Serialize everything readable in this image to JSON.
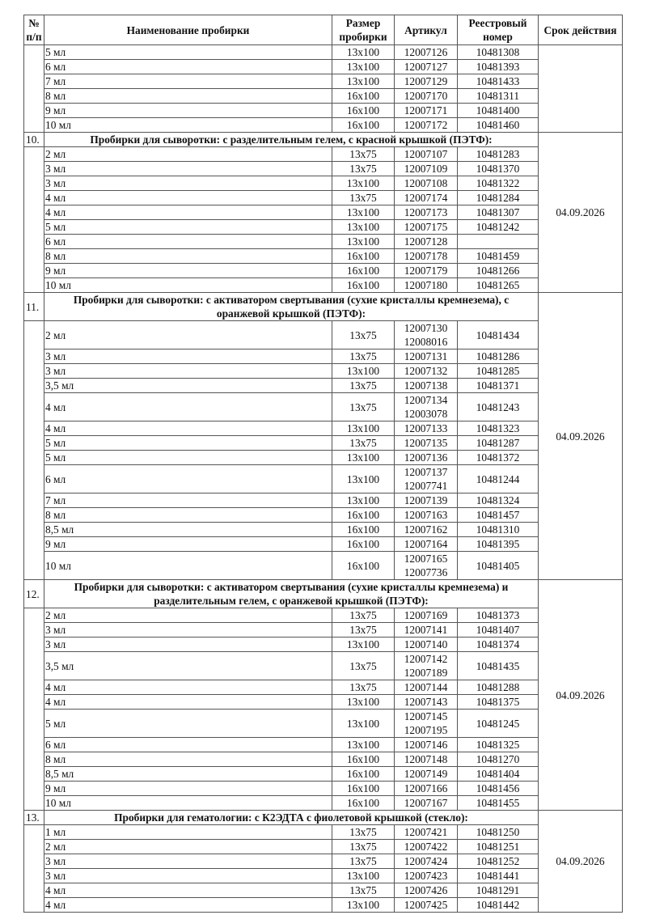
{
  "header": {
    "num": "№ п/п",
    "name": "Наименование пробирки",
    "size": "Размер пробирки",
    "article": "Артикул",
    "registry": "Реестровый номер",
    "expiry": "Срок действия"
  },
  "groups": [
    {
      "number": "",
      "title": "",
      "expiry": "",
      "items": [
        {
          "name": "5 мл",
          "size": "13x100",
          "articles": [
            "12007126"
          ],
          "registry": "10481308"
        },
        {
          "name": "6 мл",
          "size": "13x100",
          "articles": [
            "12007127"
          ],
          "registry": "10481393"
        },
        {
          "name": "7 мл",
          "size": "13x100",
          "articles": [
            "12007129"
          ],
          "registry": "10481433"
        },
        {
          "name": "8 мл",
          "size": "16x100",
          "articles": [
            "12007170"
          ],
          "registry": "10481311"
        },
        {
          "name": "9 мл",
          "size": "16x100",
          "articles": [
            "12007171"
          ],
          "registry": "10481400"
        },
        {
          "name": "10 мл",
          "size": "16x100",
          "articles": [
            "12007172"
          ],
          "registry": "10481460"
        }
      ]
    },
    {
      "number": "10.",
      "title": "Пробирки для сыворотки: с разделительным гелем, с красной крышкой (ПЭТФ):",
      "expiry": "04.09.2026",
      "items": [
        {
          "name": "2 мл",
          "size": "13x75",
          "articles": [
            "12007107"
          ],
          "registry": "10481283"
        },
        {
          "name": "3 мл",
          "size": "13x75",
          "articles": [
            "12007109"
          ],
          "registry": "10481370"
        },
        {
          "name": "3 мл",
          "size": "13x100",
          "articles": [
            "12007108"
          ],
          "registry": "10481322"
        },
        {
          "name": "4 мл",
          "size": "13x75",
          "articles": [
            "12007174"
          ],
          "registry": "10481284"
        },
        {
          "name": "4 мл",
          "size": "13x100",
          "articles": [
            "12007173"
          ],
          "registry": "10481307"
        },
        {
          "name": "5 мл",
          "size": "13x100",
          "articles": [
            "12007175"
          ],
          "registry": "10481242"
        },
        {
          "name": "6 мл",
          "size": "13x100",
          "articles": [
            "12007128"
          ],
          "registry": ""
        },
        {
          "name": "8 мл",
          "size": "16x100",
          "articles": [
            "12007178"
          ],
          "registry": "10481459"
        },
        {
          "name": "9 мл",
          "size": "16x100",
          "articles": [
            "12007179"
          ],
          "registry": "10481266"
        },
        {
          "name": "10 мл",
          "size": "16x100",
          "articles": [
            "12007180"
          ],
          "registry": "10481265"
        }
      ]
    },
    {
      "number": "11.",
      "title": "Пробирки для сыворотки: с активатором свертывания (сухие кристаллы кремнезема), с оранжевой крышкой (ПЭТФ):",
      "expiry": "04.09.2026",
      "items": [
        {
          "name": "2 мл",
          "size": "13x75",
          "articles": [
            "12007130",
            "12008016"
          ],
          "registry": "10481434"
        },
        {
          "name": "3 мл",
          "size": "13x75",
          "articles": [
            "12007131"
          ],
          "registry": "10481286"
        },
        {
          "name": "3 мл",
          "size": "13x100",
          "articles": [
            "12007132"
          ],
          "registry": "10481285"
        },
        {
          "name": "3,5 мл",
          "size": "13x75",
          "articles": [
            "12007138"
          ],
          "registry": "10481371"
        },
        {
          "name": "4 мл",
          "size": "13x75",
          "articles": [
            "12007134",
            "12003078"
          ],
          "registry": "10481243"
        },
        {
          "name": "4 мл",
          "size": "13x100",
          "articles": [
            "12007133"
          ],
          "registry": "10481323"
        },
        {
          "name": "5 мл",
          "size": "13x75",
          "articles": [
            "12007135"
          ],
          "registry": "10481287"
        },
        {
          "name": "5 мл",
          "size": "13x100",
          "articles": [
            "12007136"
          ],
          "registry": "10481372"
        },
        {
          "name": "6 мл",
          "size": "13x100",
          "articles": [
            "12007137",
            "12007741"
          ],
          "registry": "10481244"
        },
        {
          "name": "7 мл",
          "size": "13x100",
          "articles": [
            "12007139"
          ],
          "registry": "10481324"
        },
        {
          "name": "8 мл",
          "size": "16x100",
          "articles": [
            "12007163"
          ],
          "registry": "10481457"
        },
        {
          "name": "8,5 мл",
          "size": "16x100",
          "articles": [
            "12007162"
          ],
          "registry": "10481310"
        },
        {
          "name": "9 мл",
          "size": "16x100",
          "articles": [
            "12007164"
          ],
          "registry": "10481395"
        },
        {
          "name": "10 мл",
          "size": "16x100",
          "articles": [
            "12007165",
            "12007736"
          ],
          "registry": "10481405"
        }
      ]
    },
    {
      "number": "12.",
      "title": "Пробирки для сыворотки: с активатором свертывания (сухие кристаллы кремнезема) и разделительным гелем, с оранжевой крышкой (ПЭТФ):",
      "expiry": "04.09.2026",
      "items": [
        {
          "name": "2 мл",
          "size": "13x75",
          "articles": [
            "12007169"
          ],
          "registry": "10481373"
        },
        {
          "name": "3 мл",
          "size": "13x75",
          "articles": [
            "12007141"
          ],
          "registry": "10481407"
        },
        {
          "name": "3 мл",
          "size": "13x100",
          "articles": [
            "12007140"
          ],
          "registry": "10481374"
        },
        {
          "name": "3,5 мл",
          "size": "13x75",
          "articles": [
            "12007142",
            "12007189"
          ],
          "registry": "10481435"
        },
        {
          "name": "4 мл",
          "size": "13x75",
          "articles": [
            "12007144"
          ],
          "registry": "10481288"
        },
        {
          "name": "4 мл",
          "size": "13x100",
          "articles": [
            "12007143"
          ],
          "registry": "10481375"
        },
        {
          "name": "5 мл",
          "size": "13x100",
          "articles": [
            "12007145",
            "12007195"
          ],
          "registry": "10481245"
        },
        {
          "name": "6 мл",
          "size": "13x100",
          "articles": [
            "12007146"
          ],
          "registry": "10481325"
        },
        {
          "name": "8 мл",
          "size": "16x100",
          "articles": [
            "12007148"
          ],
          "registry": "10481270"
        },
        {
          "name": "8,5 мл",
          "size": "16x100",
          "articles": [
            "12007149"
          ],
          "registry": "10481404"
        },
        {
          "name": "9 мл",
          "size": "16x100",
          "articles": [
            "12007166"
          ],
          "registry": "10481456"
        },
        {
          "name": "10 мл",
          "size": "16x100",
          "articles": [
            "12007167"
          ],
          "registry": "10481455"
        }
      ]
    },
    {
      "number": "13.",
      "title": "Пробирки для гематологии: с К2ЭДТА с фиолетовой крышкой (стекло):",
      "expiry": "04.09.2026",
      "items": [
        {
          "name": "1 мл",
          "size": "13x75",
          "articles": [
            "12007421"
          ],
          "registry": "10481250"
        },
        {
          "name": "2 мл",
          "size": "13x75",
          "articles": [
            "12007422"
          ],
          "registry": "10481251"
        },
        {
          "name": "3 мл",
          "size": "13x75",
          "articles": [
            "12007424"
          ],
          "registry": "10481252"
        },
        {
          "name": "3 мл",
          "size": "13x100",
          "articles": [
            "12007423"
          ],
          "registry": "10481441"
        },
        {
          "name": "4 мл",
          "size": "13x75",
          "articles": [
            "12007426"
          ],
          "registry": "10481291"
        },
        {
          "name": "4 мл",
          "size": "13x100",
          "articles": [
            "12007425"
          ],
          "registry": "10481442"
        }
      ]
    }
  ]
}
